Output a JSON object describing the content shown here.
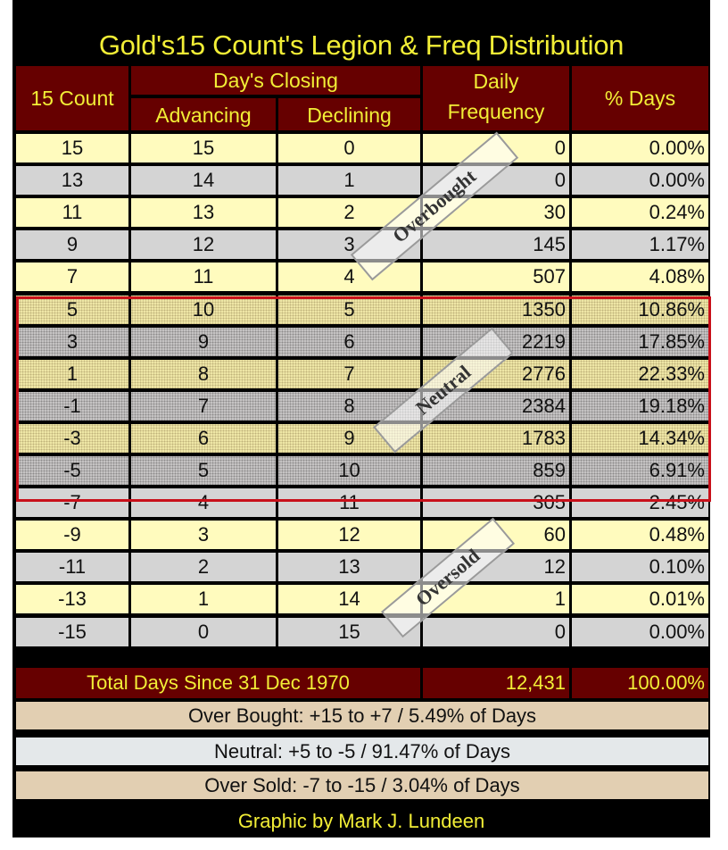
{
  "title": "Gold's15 Count's Legion & Freq Distribution",
  "headers": {
    "count": "15 Count",
    "closing": "Day's Closing",
    "advancing": "Advancing",
    "declining": "Declining",
    "daily": "Daily",
    "frequency": "Frequency",
    "pct": "% Days"
  },
  "rows": [
    {
      "count": "15",
      "adv": "15",
      "dec": "0",
      "freq": "0",
      "pct": "0.00%"
    },
    {
      "count": "13",
      "adv": "14",
      "dec": "1",
      "freq": "0",
      "pct": "0.00%"
    },
    {
      "count": "11",
      "adv": "13",
      "dec": "2",
      "freq": "30",
      "pct": "0.24%"
    },
    {
      "count": "9",
      "adv": "12",
      "dec": "3",
      "freq": "145",
      "pct": "1.17%"
    },
    {
      "count": "7",
      "adv": "11",
      "dec": "4",
      "freq": "507",
      "pct": "4.08%"
    },
    {
      "count": "5",
      "adv": "10",
      "dec": "5",
      "freq": "1350",
      "pct": "10.86%"
    },
    {
      "count": "3",
      "adv": "9",
      "dec": "6",
      "freq": "2219",
      "pct": "17.85%"
    },
    {
      "count": "1",
      "adv": "8",
      "dec": "7",
      "freq": "2776",
      "pct": "22.33%"
    },
    {
      "count": "-1",
      "adv": "7",
      "dec": "8",
      "freq": "2384",
      "pct": "19.18%"
    },
    {
      "count": "-3",
      "adv": "6",
      "dec": "9",
      "freq": "1783",
      "pct": "14.34%"
    },
    {
      "count": "-5",
      "adv": "5",
      "dec": "10",
      "freq": "859",
      "pct": "6.91%"
    },
    {
      "count": "-7",
      "adv": "4",
      "dec": "11",
      "freq": "305",
      "pct": "2.45%"
    },
    {
      "count": "-9",
      "adv": "3",
      "dec": "12",
      "freq": "60",
      "pct": "0.48%"
    },
    {
      "count": "-11",
      "adv": "2",
      "dec": "13",
      "freq": "12",
      "pct": "0.10%"
    },
    {
      "count": "-13",
      "adv": "1",
      "dec": "14",
      "freq": "1",
      "pct": "0.01%"
    },
    {
      "count": "-15",
      "adv": "0",
      "dec": "15",
      "freq": "0",
      "pct": "0.00%"
    }
  ],
  "stamps": {
    "overbought": "Overbought",
    "neutral": "Neutral",
    "oversold": "Oversold"
  },
  "total": {
    "label": "Total Days Since 31 Dec 1970",
    "freq": "12,431",
    "pct": "100.00%"
  },
  "summary": {
    "overbought": "Over Bought: +15 to +7   /  5.49% of Days",
    "neutral": "Neutral: +5 to -5  /  91.47% of Days",
    "oversold": "Over Sold: -7 to -15   /  3.04% of Days"
  },
  "credit": "Graphic by Mark J. Lundeen",
  "colors": {
    "header_bg": "#660000",
    "header_text": "#f2ee36",
    "row_yellow": "#fffbbe",
    "row_gray": "#d4d4d4",
    "neutral_border": "#c8101a"
  }
}
